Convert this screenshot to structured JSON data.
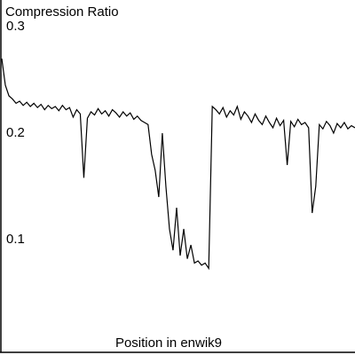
{
  "chart_data": {
    "type": "line",
    "title": "Compression Ratio",
    "x_label": "Position in enwik9",
    "color": "#000000",
    "ylim": [
      0,
      0.325
    ],
    "yticks": [
      0.1,
      0.2,
      0.3
    ],
    "values": [
      0.27,
      0.245,
      0.235,
      0.232,
      0.228,
      0.23,
      0.226,
      0.229,
      0.225,
      0.228,
      0.224,
      0.227,
      0.222,
      0.226,
      0.223,
      0.225,
      0.221,
      0.226,
      0.222,
      0.224,
      0.215,
      0.222,
      0.218,
      0.158,
      0.214,
      0.22,
      0.217,
      0.223,
      0.218,
      0.221,
      0.216,
      0.222,
      0.219,
      0.215,
      0.22,
      0.216,
      0.219,
      0.213,
      0.216,
      0.212,
      0.21,
      0.208,
      0.18,
      0.165,
      0.14,
      0.2,
      0.15,
      0.11,
      0.09,
      0.13,
      0.085,
      0.11,
      0.082,
      0.095,
      0.078,
      0.08,
      0.076,
      0.078,
      0.073,
      0.225,
      0.222,
      0.218,
      0.224,
      0.215,
      0.221,
      0.217,
      0.225,
      0.213,
      0.22,
      0.216,
      0.21,
      0.218,
      0.212,
      0.208,
      0.216,
      0.21,
      0.205,
      0.214,
      0.207,
      0.212,
      0.17,
      0.211,
      0.206,
      0.213,
      0.208,
      0.21,
      0.205,
      0.125,
      0.15,
      0.208,
      0.204,
      0.211,
      0.207,
      0.2,
      0.209,
      0.205,
      0.21,
      0.204,
      0.207,
      0.205
    ]
  }
}
